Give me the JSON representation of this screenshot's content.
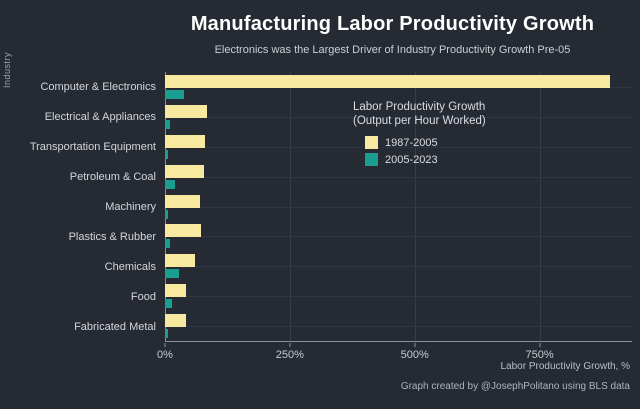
{
  "chart_data": {
    "type": "bar",
    "orientation": "horizontal",
    "title": "Manufacturing Labor Productivity Growth",
    "subtitle": "Electronics was the Largest Driver of Industry Productivity Growth Pre-05",
    "xlabel": "Labor Productivity Growth, %",
    "ylabel": "Industry",
    "xlim": [
      0,
      935
    ],
    "grid": true,
    "legend": {
      "position": "inside-top-center",
      "title_line1": "Labor Productivity Growth",
      "title_line2": "(Output per Hour Worked)"
    },
    "x_ticks": [
      {
        "value": 0,
        "label": "0%"
      },
      {
        "value": 250,
        "label": "250%"
      },
      {
        "value": 500,
        "label": "500%"
      },
      {
        "value": 750,
        "label": "750%"
      }
    ],
    "categories": [
      "Computer & Electronics",
      "Electrical & Appliances",
      "Transportation Equipment",
      "Petroleum & Coal",
      "Machinery",
      "Plastics & Rubber",
      "Chemicals",
      "Food",
      "Fabricated Metal"
    ],
    "series": [
      {
        "name": "1987-2005",
        "color": "#f7e9a0",
        "values": [
          890,
          84,
          80,
          78,
          70,
          73,
          60,
          42,
          42
        ]
      },
      {
        "name": "2005-2023",
        "color": "#1b9e90",
        "values": [
          38,
          11,
          7,
          20,
          6,
          10,
          28,
          14,
          6
        ]
      }
    ]
  },
  "footer": {
    "credit": "Graph created by @JosephPolitano using BLS data"
  },
  "colors": {
    "background": "#262a32",
    "title": "#ffffff",
    "subtitle": "#c9ced5",
    "axis_line": "#8a9099",
    "gridline": "#363d47",
    "bar_yellow": "#f7e9a0",
    "bar_teal": "#1b9e90"
  }
}
